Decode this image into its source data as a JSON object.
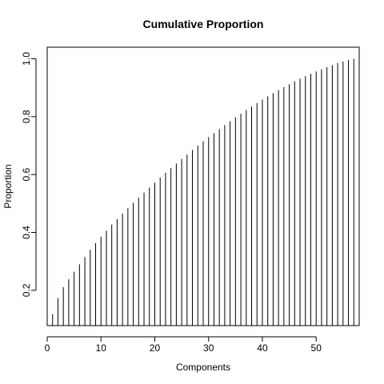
{
  "chart_data": {
    "type": "bar",
    "title": "Cumulative Proportion",
    "xlabel": "Components",
    "ylabel": "Proportion",
    "x": [
      1,
      2,
      3,
      4,
      5,
      6,
      7,
      8,
      9,
      10,
      11,
      12,
      13,
      14,
      15,
      16,
      17,
      18,
      19,
      20,
      21,
      22,
      23,
      24,
      25,
      26,
      27,
      28,
      29,
      30,
      31,
      32,
      33,
      34,
      35,
      36,
      37,
      38,
      39,
      40,
      41,
      42,
      43,
      44,
      45,
      46,
      47,
      48,
      49,
      50,
      51,
      52,
      53,
      54,
      55,
      56,
      57
    ],
    "values": [
      0.118,
      0.173,
      0.211,
      0.238,
      0.264,
      0.29,
      0.315,
      0.34,
      0.363,
      0.385,
      0.406,
      0.427,
      0.446,
      0.465,
      0.484,
      0.502,
      0.52,
      0.538,
      0.555,
      0.572,
      0.589,
      0.606,
      0.622,
      0.638,
      0.654,
      0.669,
      0.685,
      0.7,
      0.715,
      0.729,
      0.743,
      0.757,
      0.771,
      0.784,
      0.798,
      0.81,
      0.823,
      0.835,
      0.847,
      0.859,
      0.87,
      0.881,
      0.892,
      0.902,
      0.912,
      0.922,
      0.931,
      0.94,
      0.948,
      0.956,
      0.964,
      0.971,
      0.978,
      0.985,
      0.991,
      0.996,
      1.0
    ],
    "xlim": [
      0,
      58
    ],
    "ylim": [
      0.078,
      1.04
    ],
    "xticks": [
      0,
      10,
      20,
      30,
      40,
      50
    ],
    "xtick_labels": [
      "0",
      "10",
      "20",
      "30",
      "40",
      "50"
    ],
    "yticks": [
      0.2,
      0.4,
      0.6,
      0.8,
      1.0
    ],
    "ytick_labels": [
      "0.2",
      "0.4",
      "0.6",
      "0.8",
      "1.0"
    ],
    "grid": false,
    "legend": "none",
    "bar_style": "vertical-lines",
    "colors": {
      "line": "#000000",
      "background": "#ffffff"
    }
  }
}
